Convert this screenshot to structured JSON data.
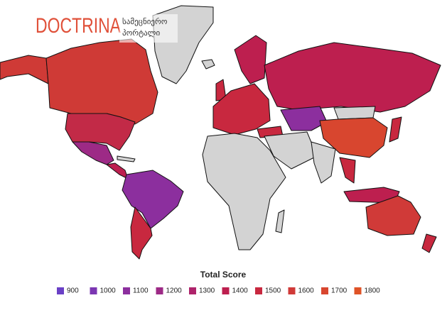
{
  "header": {
    "logo": "DOCTRINA",
    "tagline_1": "სამეცნიერო",
    "tagline_2": "პორტალი"
  },
  "legend": {
    "title": "Total Score",
    "items": [
      {
        "value": 900,
        "color": "#6a40c6"
      },
      {
        "value": 1000,
        "color": "#7b36b2"
      },
      {
        "value": 1100,
        "color": "#8c2f9e"
      },
      {
        "value": 1200,
        "color": "#9d2a86"
      },
      {
        "value": 1300,
        "color": "#ae236b"
      },
      {
        "value": 1400,
        "color": "#bd1f4f"
      },
      {
        "value": 1500,
        "color": "#c8283f"
      },
      {
        "value": 1600,
        "color": "#d03a38"
      },
      {
        "value": 1700,
        "color": "#d8462f"
      },
      {
        "value": 1800,
        "color": "#df5327"
      }
    ]
  }
}
